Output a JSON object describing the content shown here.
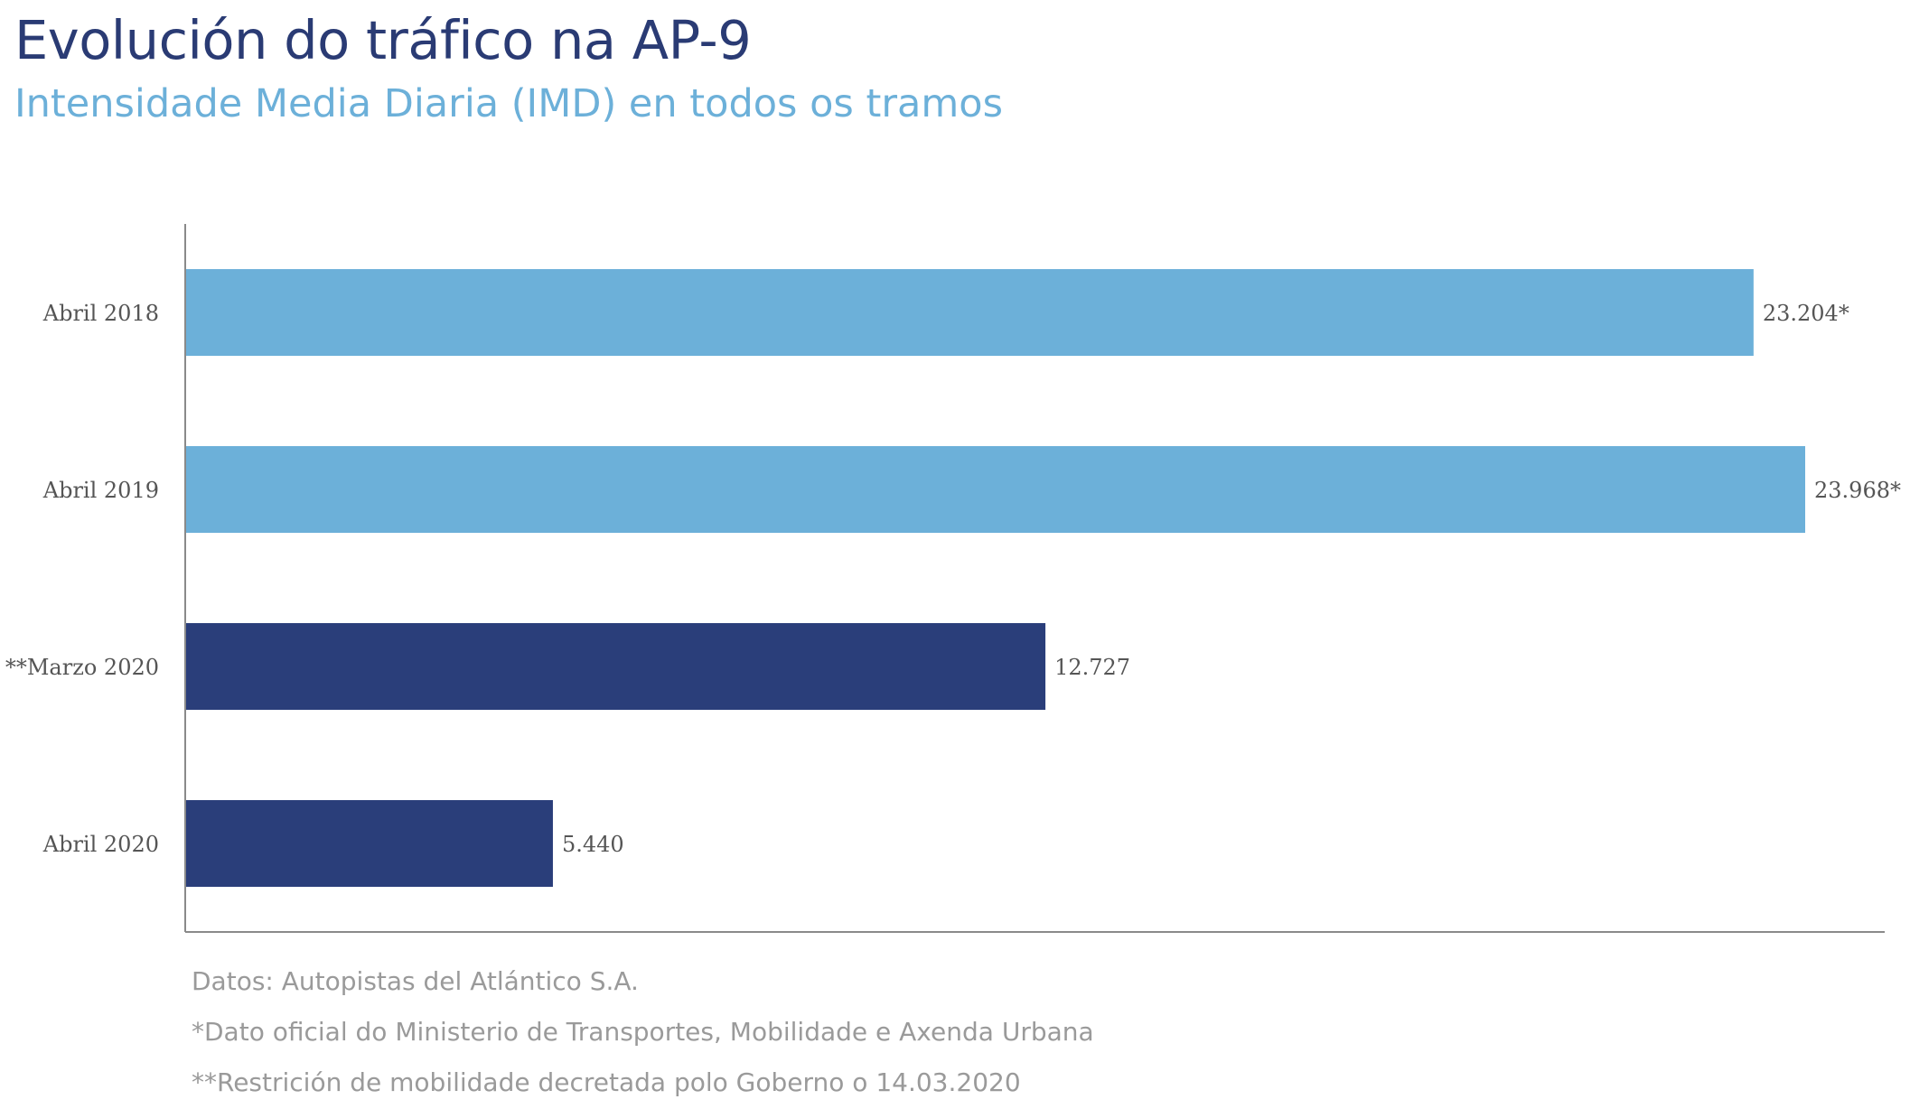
{
  "header": {
    "title": "Evolución do tráfico na AP-9",
    "subtitle": "Intensidade Media Diaria (IMD) en todos os tramos"
  },
  "chart_data": {
    "type": "bar",
    "orientation": "horizontal",
    "categories": [
      "Abril 2018",
      "Abril 2019",
      "**Marzo 2020",
      "Abril 2020"
    ],
    "values": [
      23204,
      23968,
      12727,
      5440
    ],
    "data_labels": [
      "23.204*",
      "23.968*",
      "12.727",
      "5.440"
    ],
    "colors": [
      "#6cb0d9",
      "#6cb0d9",
      "#2a3e7a",
      "#2a3e7a"
    ],
    "xlim": [
      0,
      25000
    ],
    "grid": false,
    "legend": "none",
    "title": "Evolución do tráfico na AP-9",
    "subtitle": "Intensidade Media Diaria (IMD) en todos os tramos"
  },
  "notes": [
    "Datos: Autopistas del Atlántico S.A.",
    "*Dato oficial do Ministerio de Transportes, Mobilidade e Axenda Urbana",
    "**Restrición de mobilidade decretada polo Goberno o 14.03.2020"
  ],
  "theme": {
    "axis_color": "#8a8a8a",
    "label_color": "#555555"
  }
}
